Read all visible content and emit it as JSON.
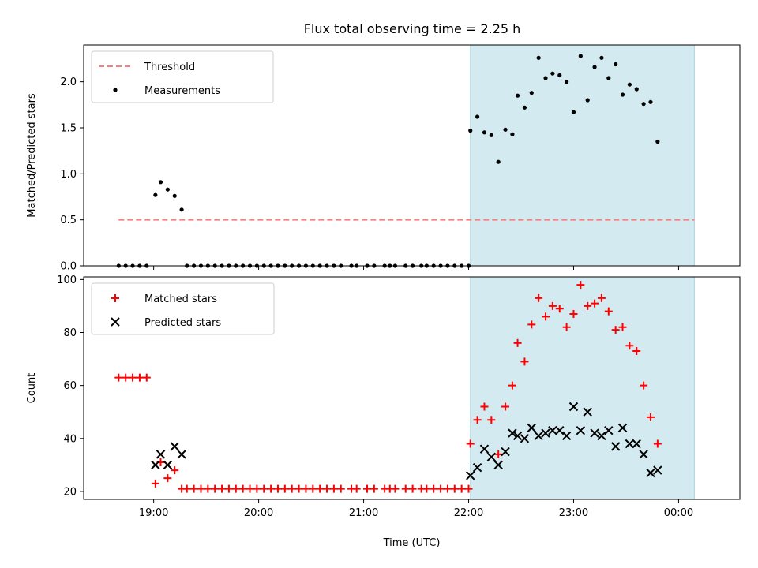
{
  "chart_data": [
    {
      "type": "scatter",
      "title": "Flux total observing time = 2.25 h",
      "ylabel": "Matched/Predicted stars",
      "xlabel": "",
      "xlim": [
        "18:20",
        "00:35"
      ],
      "ylim": [
        0,
        2.4
      ],
      "yticks": [
        "0.0",
        "0.5",
        "1.0",
        "1.5",
        "2.0"
      ],
      "xticks": [
        "19:00",
        "20:00",
        "21:00",
        "22:00",
        "23:00",
        "00:00"
      ],
      "legend": {
        "placement": "upper-left",
        "entries": [
          "Threshold",
          "Measurements"
        ]
      },
      "shaded_region": {
        "from": "22:01",
        "to": "00:09",
        "color": "#d3eaf0"
      },
      "threshold": {
        "label": "Threshold",
        "value": 0.5,
        "from": "18:40",
        "to": "00:09",
        "color": "#f47f7f"
      },
      "series": [
        {
          "name": "Measurements",
          "color": "#000000",
          "points": [
            [
              "18:40",
              0
            ],
            [
              "18:44",
              0
            ],
            [
              "18:48",
              0
            ],
            [
              "18:52",
              0
            ],
            [
              "18:56",
              0
            ],
            [
              "19:01",
              0.77
            ],
            [
              "19:04",
              0.91
            ],
            [
              "19:08",
              0.83
            ],
            [
              "19:12",
              0.76
            ],
            [
              "19:16",
              0.61
            ],
            [
              "19:19",
              0
            ],
            [
              "19:23",
              0
            ],
            [
              "19:27",
              0
            ],
            [
              "19:31",
              0
            ],
            [
              "19:35",
              0
            ],
            [
              "19:39",
              0
            ],
            [
              "19:43",
              0
            ],
            [
              "19:47",
              0
            ],
            [
              "19:51",
              0
            ],
            [
              "19:55",
              0
            ],
            [
              "19:59",
              0
            ],
            [
              "20:03",
              0
            ],
            [
              "20:07",
              0
            ],
            [
              "20:11",
              0
            ],
            [
              "20:15",
              0
            ],
            [
              "20:19",
              0
            ],
            [
              "20:23",
              0
            ],
            [
              "20:27",
              0
            ],
            [
              "20:31",
              0
            ],
            [
              "20:35",
              0
            ],
            [
              "20:39",
              0
            ],
            [
              "20:43",
              0
            ],
            [
              "20:47",
              0
            ],
            [
              "20:53",
              0
            ],
            [
              "20:56",
              0
            ],
            [
              "21:02",
              0
            ],
            [
              "21:06",
              0
            ],
            [
              "21:12",
              0
            ],
            [
              "21:15",
              0
            ],
            [
              "21:18",
              0
            ],
            [
              "21:24",
              0
            ],
            [
              "21:28",
              0
            ],
            [
              "21:33",
              0
            ],
            [
              "21:36",
              0
            ],
            [
              "21:40",
              0
            ],
            [
              "21:44",
              0
            ],
            [
              "21:48",
              0
            ],
            [
              "21:52",
              0
            ],
            [
              "21:56",
              0
            ],
            [
              "22:00",
              0
            ],
            [
              "22:01",
              1.47
            ],
            [
              "22:05",
              1.62
            ],
            [
              "22:09",
              1.45
            ],
            [
              "22:13",
              1.42
            ],
            [
              "22:17",
              1.13
            ],
            [
              "22:21",
              1.48
            ],
            [
              "22:25",
              1.43
            ],
            [
              "22:28",
              1.85
            ],
            [
              "22:32",
              1.72
            ],
            [
              "22:36",
              1.88
            ],
            [
              "22:40",
              2.26
            ],
            [
              "22:44",
              2.04
            ],
            [
              "22:48",
              2.09
            ],
            [
              "22:52",
              2.07
            ],
            [
              "22:56",
              2.0
            ],
            [
              "23:00",
              1.67
            ],
            [
              "23:04",
              2.28
            ],
            [
              "23:08",
              1.8
            ],
            [
              "23:12",
              2.16
            ],
            [
              "23:16",
              2.26
            ],
            [
              "23:20",
              2.04
            ],
            [
              "23:24",
              2.19
            ],
            [
              "23:28",
              1.86
            ],
            [
              "23:32",
              1.97
            ],
            [
              "23:36",
              1.92
            ],
            [
              "23:40",
              1.76
            ],
            [
              "23:44",
              1.78
            ],
            [
              "23:48",
              1.35
            ]
          ]
        }
      ]
    },
    {
      "type": "scatter",
      "title": "",
      "ylabel": "Count",
      "xlabel": "Time (UTC)",
      "xlim": [
        "18:20",
        "00:35"
      ],
      "ylim": [
        17,
        101
      ],
      "yticks": [
        "20",
        "40",
        "60",
        "80",
        "100"
      ],
      "xticks": [
        "19:00",
        "20:00",
        "21:00",
        "22:00",
        "23:00",
        "00:00"
      ],
      "legend": {
        "placement": "upper-left",
        "entries": [
          "Matched stars",
          "Predicted stars"
        ]
      },
      "shaded_region": {
        "from": "22:01",
        "to": "00:09",
        "color": "#d3eaf0"
      },
      "series": [
        {
          "name": "Matched stars",
          "marker": "plus",
          "color": "#ff0000",
          "points": [
            [
              "18:40",
              63
            ],
            [
              "18:44",
              63
            ],
            [
              "18:48",
              63
            ],
            [
              "18:52",
              63
            ],
            [
              "18:56",
              63
            ],
            [
              "19:01",
              23
            ],
            [
              "19:04",
              31
            ],
            [
              "19:08",
              25
            ],
            [
              "19:12",
              28
            ],
            [
              "19:16",
              21
            ],
            [
              "19:19",
              21
            ],
            [
              "19:23",
              21
            ],
            [
              "19:27",
              21
            ],
            [
              "19:31",
              21
            ],
            [
              "19:35",
              21
            ],
            [
              "19:39",
              21
            ],
            [
              "19:43",
              21
            ],
            [
              "19:47",
              21
            ],
            [
              "19:51",
              21
            ],
            [
              "19:55",
              21
            ],
            [
              "19:59",
              21
            ],
            [
              "20:03",
              21
            ],
            [
              "20:07",
              21
            ],
            [
              "20:11",
              21
            ],
            [
              "20:15",
              21
            ],
            [
              "20:19",
              21
            ],
            [
              "20:23",
              21
            ],
            [
              "20:27",
              21
            ],
            [
              "20:31",
              21
            ],
            [
              "20:35",
              21
            ],
            [
              "20:39",
              21
            ],
            [
              "20:43",
              21
            ],
            [
              "20:47",
              21
            ],
            [
              "20:53",
              21
            ],
            [
              "20:56",
              21
            ],
            [
              "21:02",
              21
            ],
            [
              "21:06",
              21
            ],
            [
              "21:12",
              21
            ],
            [
              "21:15",
              21
            ],
            [
              "21:18",
              21
            ],
            [
              "21:24",
              21
            ],
            [
              "21:28",
              21
            ],
            [
              "21:33",
              21
            ],
            [
              "21:36",
              21
            ],
            [
              "21:40",
              21
            ],
            [
              "21:44",
              21
            ],
            [
              "21:48",
              21
            ],
            [
              "21:52",
              21
            ],
            [
              "21:56",
              21
            ],
            [
              "22:00",
              21
            ],
            [
              "22:01",
              38
            ],
            [
              "22:05",
              47
            ],
            [
              "22:09",
              52
            ],
            [
              "22:13",
              47
            ],
            [
              "22:17",
              34
            ],
            [
              "22:21",
              52
            ],
            [
              "22:25",
              60
            ],
            [
              "22:28",
              76
            ],
            [
              "22:32",
              69
            ],
            [
              "22:36",
              83
            ],
            [
              "22:40",
              93
            ],
            [
              "22:44",
              86
            ],
            [
              "22:48",
              90
            ],
            [
              "22:52",
              89
            ],
            [
              "22:56",
              82
            ],
            [
              "23:00",
              87
            ],
            [
              "23:04",
              98
            ],
            [
              "23:08",
              90
            ],
            [
              "23:12",
              91
            ],
            [
              "23:16",
              93
            ],
            [
              "23:20",
              88
            ],
            [
              "23:24",
              81
            ],
            [
              "23:28",
              82
            ],
            [
              "23:32",
              75
            ],
            [
              "23:36",
              73
            ],
            [
              "23:40",
              60
            ],
            [
              "23:44",
              48
            ],
            [
              "23:48",
              38
            ]
          ]
        },
        {
          "name": "Predicted stars",
          "marker": "x",
          "color": "#000000",
          "points": [
            [
              "19:01",
              30
            ],
            [
              "19:04",
              34
            ],
            [
              "19:08",
              30
            ],
            [
              "19:12",
              37
            ],
            [
              "19:16",
              34
            ],
            [
              "22:01",
              26
            ],
            [
              "22:05",
              29
            ],
            [
              "22:09",
              36
            ],
            [
              "22:13",
              33
            ],
            [
              "22:17",
              30
            ],
            [
              "22:21",
              35
            ],
            [
              "22:25",
              42
            ],
            [
              "22:28",
              41
            ],
            [
              "22:32",
              40
            ],
            [
              "22:36",
              44
            ],
            [
              "22:40",
              41
            ],
            [
              "22:44",
              42
            ],
            [
              "22:48",
              43
            ],
            [
              "22:52",
              43
            ],
            [
              "22:56",
              41
            ],
            [
              "23:00",
              52
            ],
            [
              "23:04",
              43
            ],
            [
              "23:08",
              50
            ],
            [
              "23:12",
              42
            ],
            [
              "23:16",
              41
            ],
            [
              "23:20",
              43
            ],
            [
              "23:24",
              37
            ],
            [
              "23:28",
              44
            ],
            [
              "23:32",
              38
            ],
            [
              "23:36",
              38
            ],
            [
              "23:40",
              34
            ],
            [
              "23:44",
              27
            ],
            [
              "23:48",
              28
            ]
          ]
        }
      ]
    }
  ]
}
